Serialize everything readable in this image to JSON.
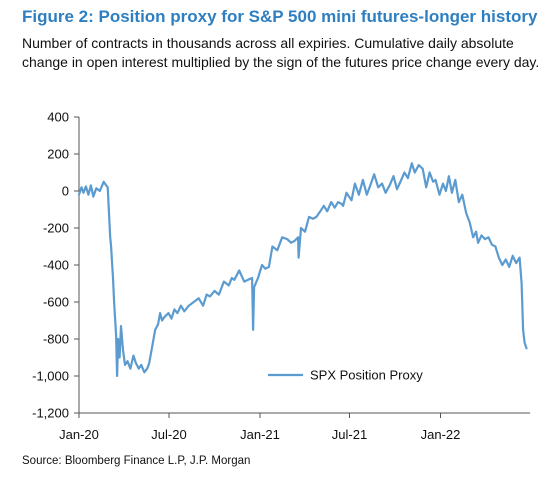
{
  "figure": {
    "title": "Figure 2: Position proxy for S&P 500 mini futures-longer history",
    "subtitle": "Number of contracts in thousands across all expiries. Cumulative daily absolute change in open interest multiplied by the sign of the futures price change every day.",
    "source": "Source: Bloomberg Finance L.P, J.P. Morgan"
  },
  "colors": {
    "title": "#2e7fc1",
    "series": "#5b9bd0",
    "axis": "#555555",
    "text": "#111111"
  },
  "chart_data": {
    "type": "line",
    "title": "Figure 2: Position proxy for S&P 500 mini futures-longer history",
    "xlabel": "",
    "ylabel": "",
    "ylim": [
      -1200,
      400
    ],
    "xlim": [
      "2020-01-01",
      "2022-07-01"
    ],
    "yticks": [
      -1200,
      -1000,
      -800,
      -600,
      -400,
      -200,
      0,
      200,
      400
    ],
    "ytick_labels": [
      "-1,200",
      "-1,000",
      "-800",
      "-600",
      "-400",
      "-200",
      "0",
      "200",
      "400"
    ],
    "xticks": [
      "2020-01-01",
      "2020-07-01",
      "2021-01-01",
      "2021-07-01",
      "2022-01-01"
    ],
    "xtick_labels": [
      "Jan-20",
      "Jul-20",
      "Jan-21",
      "Jul-21",
      "Jan-22"
    ],
    "grid": false,
    "legend_position": "lower-right",
    "series": [
      {
        "name": "SPX Position Proxy",
        "x": [
          "2020-01-01",
          "2020-01-06",
          "2020-01-10",
          "2020-01-15",
          "2020-01-20",
          "2020-01-25",
          "2020-01-30",
          "2020-02-05",
          "2020-02-12",
          "2020-02-20",
          "2020-02-25",
          "2020-02-28",
          "2020-03-04",
          "2020-03-06",
          "2020-03-10",
          "2020-03-12",
          "2020-03-16",
          "2020-03-18",
          "2020-03-20",
          "2020-03-23",
          "2020-03-26",
          "2020-03-30",
          "2020-04-03",
          "2020-04-08",
          "2020-04-14",
          "2020-04-20",
          "2020-04-25",
          "2020-05-01",
          "2020-05-06",
          "2020-05-12",
          "2020-05-18",
          "2020-05-22",
          "2020-05-28",
          "2020-06-03",
          "2020-06-09",
          "2020-06-13",
          "2020-06-17",
          "2020-06-22",
          "2020-06-30",
          "2020-07-06",
          "2020-07-12",
          "2020-07-18",
          "2020-07-25",
          "2020-08-01",
          "2020-08-10",
          "2020-08-20",
          "2020-08-30",
          "2020-09-08",
          "2020-09-15",
          "2020-09-22",
          "2020-10-01",
          "2020-10-10",
          "2020-10-20",
          "2020-10-30",
          "2020-11-05",
          "2020-11-10",
          "2020-11-20",
          "2020-11-30",
          "2020-12-08",
          "2020-12-16",
          "2020-12-18",
          "2020-12-20",
          "2020-12-28",
          "2021-01-05",
          "2021-01-12",
          "2021-01-19",
          "2021-01-26",
          "2021-02-05",
          "2021-02-15",
          "2021-02-25",
          "2021-03-05",
          "2021-03-12",
          "2021-03-19",
          "2021-03-20",
          "2021-03-25",
          "2021-04-02",
          "2021-04-10",
          "2021-04-18",
          "2021-04-25",
          "2021-05-03",
          "2021-05-10",
          "2021-05-17",
          "2021-05-25",
          "2021-06-01",
          "2021-06-08",
          "2021-06-15",
          "2021-06-18",
          "2021-06-19",
          "2021-06-25",
          "2021-07-05",
          "2021-07-12",
          "2021-07-20",
          "2021-07-28",
          "2021-08-05",
          "2021-08-12",
          "2021-08-20",
          "2021-08-28",
          "2021-09-05",
          "2021-09-12",
          "2021-09-20",
          "2021-09-28",
          "2021-10-05",
          "2021-10-12",
          "2021-10-20",
          "2021-10-27",
          "2021-11-04",
          "2021-11-10",
          "2021-11-18",
          "2021-11-26",
          "2021-12-03",
          "2021-12-10",
          "2021-12-17",
          "2021-12-22",
          "2021-12-30",
          "2022-01-06",
          "2022-01-12",
          "2022-01-18",
          "2022-01-24",
          "2022-01-31",
          "2022-02-07",
          "2022-02-14",
          "2022-02-22",
          "2022-03-01",
          "2022-03-08",
          "2022-03-14",
          "2022-03-18",
          "2022-03-25",
          "2022-04-01",
          "2022-04-08",
          "2022-04-15",
          "2022-04-22",
          "2022-04-29",
          "2022-05-06",
          "2022-05-13",
          "2022-05-20",
          "2022-05-27",
          "2022-06-03",
          "2022-06-10",
          "2022-06-14",
          "2022-06-17",
          "2022-06-20",
          "2022-06-24"
        ],
        "values": [
          -20,
          20,
          -10,
          25,
          -20,
          30,
          -30,
          15,
          0,
          50,
          30,
          20,
          -250,
          -300,
          -480,
          -600,
          -780,
          -1000,
          -800,
          -900,
          -730,
          -860,
          -940,
          -920,
          -960,
          -890,
          -930,
          -960,
          -940,
          -980,
          -960,
          -930,
          -840,
          -750,
          -720,
          -660,
          -700,
          -680,
          -660,
          -690,
          -640,
          -660,
          -620,
          -650,
          -620,
          -600,
          -580,
          -620,
          -560,
          -570,
          -540,
          -560,
          -490,
          -510,
          -470,
          -480,
          -430,
          -490,
          -480,
          -470,
          -750,
          -520,
          -470,
          -400,
          -420,
          -410,
          -300,
          -320,
          -250,
          -260,
          -280,
          -270,
          -250,
          -360,
          -200,
          -220,
          -140,
          -150,
          -140,
          -110,
          -80,
          -110,
          -60,
          -90,
          -60,
          -70,
          -80,
          -70,
          -10,
          -50,
          40,
          -20,
          60,
          -20,
          30,
          90,
          20,
          40,
          -10,
          30,
          80,
          10,
          50,
          100,
          70,
          150,
          100,
          140,
          120,
          20,
          100,
          50,
          60,
          -20,
          40,
          0,
          80,
          -10,
          60,
          -60,
          -20,
          -120,
          -170,
          -250,
          -220,
          -280,
          -240,
          -260,
          -250,
          -290,
          -300,
          -360,
          -400,
          -370,
          -410,
          -350,
          -390,
          -360,
          -500,
          -750,
          -820,
          -850
        ]
      }
    ]
  }
}
